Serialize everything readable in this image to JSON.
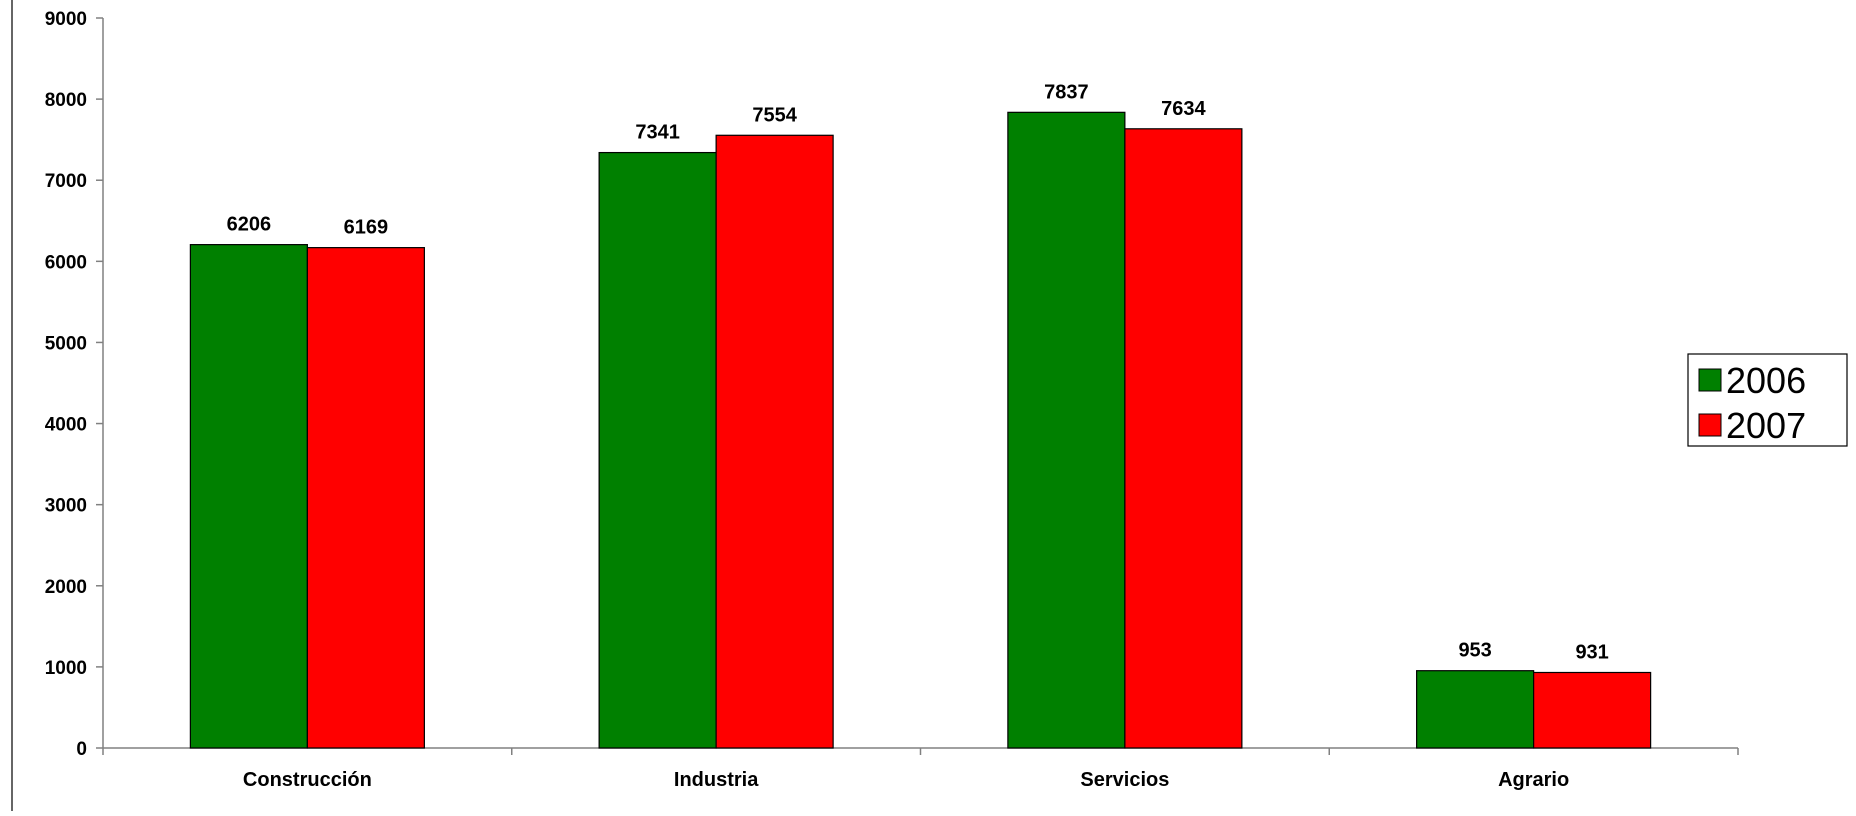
{
  "colors": {
    "series_2006": "#008000",
    "series_2007": "#ff0000",
    "axis": "#808080",
    "bar_border": "#000000"
  },
  "chart_data": {
    "type": "bar",
    "title": "",
    "xlabel": "",
    "ylabel": "",
    "categories": [
      "Construcción",
      "Industria",
      "Servicios",
      "Agrario"
    ],
    "series": [
      {
        "name": "2006",
        "color": "#008000",
        "values": [
          6206,
          7341,
          7837,
          953
        ]
      },
      {
        "name": "2007",
        "color": "#ff0000",
        "values": [
          6169,
          7554,
          7634,
          931
        ]
      }
    ],
    "ylim": [
      0,
      9000
    ],
    "yticks": [
      "0",
      "1000",
      "2000",
      "3000",
      "4000",
      "5000",
      "6000",
      "7000",
      "8000",
      "9000"
    ],
    "grid": false,
    "legend_position": "right"
  }
}
